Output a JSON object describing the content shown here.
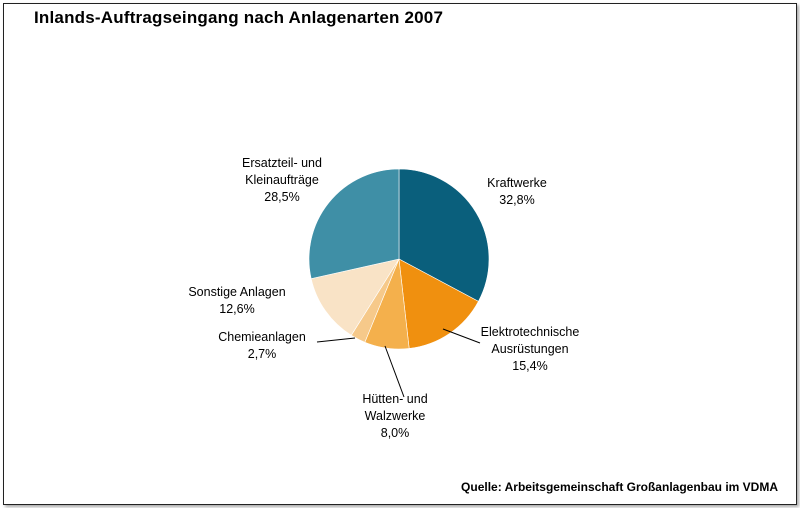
{
  "chart_data": {
    "type": "pie",
    "title": "Inlands-Auftragseingang nach Anlagenarten 2007",
    "source": "Quelle: Arbeitsgemeinschaft Großanlagenbau im VDMA",
    "slices": [
      {
        "label_lines": [
          "Kraftwerke"
        ],
        "value_label": "32,8%",
        "value": 32.8,
        "color": "#0a5f7c"
      },
      {
        "label_lines": [
          "Elektrotechnische",
          "Ausrüstungen"
        ],
        "value_label": "15,4%",
        "value": 15.4,
        "color": "#f0900f"
      },
      {
        "label_lines": [
          "Hütten- und",
          "Walzwerke"
        ],
        "value_label": "8,0%",
        "value": 8.0,
        "color": "#f4b04c"
      },
      {
        "label_lines": [
          "Chemieanlagen"
        ],
        "value_label": "2,7%",
        "value": 2.7,
        "color": "#f6c98a"
      },
      {
        "label_lines": [
          "Sonstige Anlagen"
        ],
        "value_label": "12,6%",
        "value": 12.6,
        "color": "#f9e3c6"
      },
      {
        "label_lines": [
          "Ersatzteil- und",
          "Kleinaufträge"
        ],
        "value_label": "28,5%",
        "value": 28.5,
        "color": "#3f8fa6"
      }
    ]
  }
}
